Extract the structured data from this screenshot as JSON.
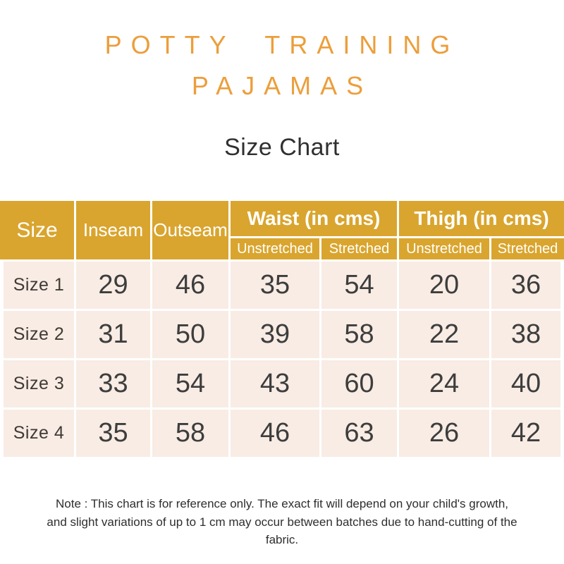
{
  "page": {
    "brand_line1": "POTTY TRAINING",
    "brand_line2": "PAJAMAS",
    "title": "Size Chart",
    "note": "Note : This chart is for reference only. The exact fit will depend on your child's growth, and slight variations of up to 1 cm may occur between batches due to hand-cutting of the fabric."
  },
  "colors": {
    "header_bg": "#D9A52E",
    "row_bg": "#F8ECE4",
    "brand_orange": "#EC9E3B",
    "header_text": "#FFFFFF",
    "body_text": "#3D3D3D"
  },
  "table": {
    "columns": [
      "Size",
      "Inseam",
      "Outseam"
    ],
    "groups": [
      {
        "label": "Waist (in cms)",
        "sub": [
          "Unstretched",
          "Stretched"
        ]
      },
      {
        "label": "Thigh (in cms)",
        "sub": [
          "Unstretched",
          "Stretched"
        ]
      }
    ],
    "rows": [
      {
        "label": "Size 1",
        "inseam": "29",
        "outseam": "46",
        "waist_unstretched": "35",
        "waist_stretched": "54",
        "thigh_unstretched": "20",
        "thigh_stretched": "36"
      },
      {
        "label": "Size 2",
        "inseam": "31",
        "outseam": "50",
        "waist_unstretched": "39",
        "waist_stretched": "58",
        "thigh_unstretched": "22",
        "thigh_stretched": "38"
      },
      {
        "label": "Size 3",
        "inseam": "33",
        "outseam": "54",
        "waist_unstretched": "43",
        "waist_stretched": "60",
        "thigh_unstretched": "24",
        "thigh_stretched": "40"
      },
      {
        "label": "Size 4",
        "inseam": "35",
        "outseam": "58",
        "waist_unstretched": "46",
        "waist_stretched": "63",
        "thigh_unstretched": "26",
        "thigh_stretched": "42"
      }
    ]
  }
}
